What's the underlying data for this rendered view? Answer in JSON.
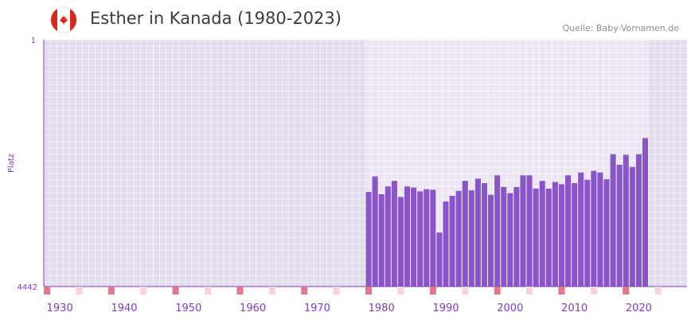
{
  "header": {
    "title": "Esther in Kanada (1980-2023)",
    "source": "Quelle: Baby-Vornamen.de",
    "flag_icon": "canada-flag-icon"
  },
  "colors": {
    "bar": "#8a55c8",
    "accent": "#7b3fbf",
    "marker_decade": "#e07a8a",
    "marker_half": "#f6d4da"
  },
  "chart_data": {
    "type": "bar",
    "title": "Esther in Kanada (1980-2023)",
    "xlabel": "",
    "ylabel": "Platz",
    "y_inverted": true,
    "ylim": [
      1,
      4442
    ],
    "xlim": [
      1928,
      2028
    ],
    "y_tick_labels": [
      "1",
      "4442"
    ],
    "x_tick_labels": [
      "1930",
      "1940",
      "1950",
      "1960",
      "1970",
      "1980",
      "1990",
      "2000",
      "2010",
      "2020"
    ],
    "x_ticks": [
      1930,
      1940,
      1950,
      1960,
      1970,
      1980,
      1990,
      2000,
      2010,
      2020
    ],
    "highlight_range": [
      1978,
      2022
    ],
    "categories": [
      1978,
      1979,
      1980,
      1981,
      1982,
      1983,
      1984,
      1985,
      1986,
      1987,
      1988,
      1989,
      1990,
      1991,
      1992,
      1993,
      1994,
      1995,
      1996,
      1997,
      1998,
      1999,
      2000,
      2001,
      2002,
      2003,
      2004,
      2005,
      2006,
      2007,
      2008,
      2009,
      2010,
      2011,
      2012,
      2013,
      2014,
      2015,
      2016,
      2017,
      2018,
      2019,
      2020,
      2021
    ],
    "values": [
      2740,
      2460,
      2780,
      2640,
      2540,
      2830,
      2640,
      2660,
      2730,
      2690,
      2700,
      3470,
      2910,
      2810,
      2720,
      2540,
      2710,
      2500,
      2580,
      2790,
      2440,
      2650,
      2760,
      2650,
      2440,
      2440,
      2680,
      2540,
      2680,
      2560,
      2600,
      2440,
      2580,
      2390,
      2520,
      2360,
      2390,
      2510,
      2060,
      2250,
      2070,
      2290,
      2060,
      1770
    ]
  }
}
